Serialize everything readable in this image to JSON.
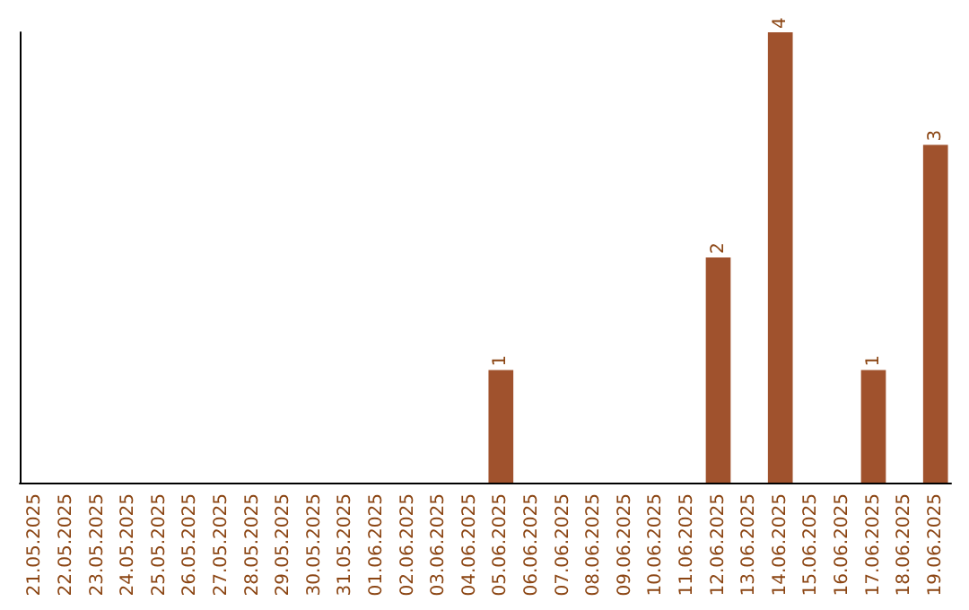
{
  "chart_data": {
    "type": "bar",
    "categories": [
      "21.05.2025",
      "22.05.2025",
      "23.05.2025",
      "24.05.2025",
      "25.05.2025",
      "26.05.2025",
      "27.05.2025",
      "28.05.2025",
      "29.05.2025",
      "30.05.2025",
      "31.05.2025",
      "01.06.2025",
      "02.06.2025",
      "03.06.2025",
      "04.06.2025",
      "05.06.2025",
      "06.06.2025",
      "07.06.2025",
      "08.06.2025",
      "09.06.2025",
      "10.06.2025",
      "11.06.2025",
      "12.06.2025",
      "13.06.2025",
      "14.06.2025",
      "15.06.2025",
      "16.06.2025",
      "17.06.2025",
      "18.06.2025",
      "19.06.2025"
    ],
    "values": [
      null,
      null,
      null,
      null,
      null,
      null,
      null,
      null,
      null,
      null,
      null,
      null,
      null,
      null,
      null,
      1,
      null,
      null,
      null,
      null,
      null,
      null,
      2,
      null,
      4,
      null,
      null,
      1,
      null,
      3
    ],
    "value_labels": [
      null,
      null,
      null,
      null,
      null,
      null,
      null,
      null,
      null,
      null,
      null,
      null,
      null,
      null,
      null,
      "1",
      null,
      null,
      null,
      null,
      null,
      null,
      "2",
      null,
      "4",
      null,
      null,
      "1",
      null,
      "3"
    ],
    "color": "#a0522d",
    "grid": false,
    "tick_labels": "x"
  }
}
